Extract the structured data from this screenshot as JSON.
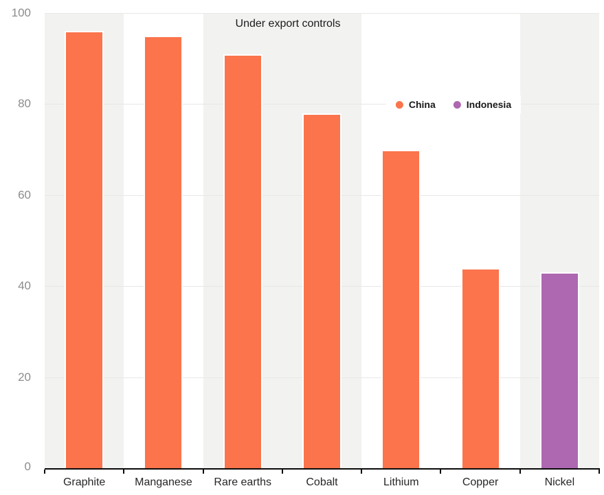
{
  "chart_data": {
    "type": "bar",
    "annotation": "Under export controls",
    "categories": [
      "Graphite",
      "Manganese",
      "Rare earths",
      "Cobalt",
      "Lithium",
      "Copper",
      "Nickel"
    ],
    "bars": [
      {
        "category": "Graphite",
        "series": "China",
        "value": 96,
        "shaded_band": true
      },
      {
        "category": "Manganese",
        "series": "China",
        "value": 95,
        "shaded_band": false
      },
      {
        "category": "Rare earths",
        "series": "China",
        "value": 91,
        "shaded_band": true
      },
      {
        "category": "Cobalt",
        "series": "China",
        "value": 78,
        "shaded_band": true
      },
      {
        "category": "Lithium",
        "series": "China",
        "value": 70,
        "shaded_band": false
      },
      {
        "category": "Copper",
        "series": "China",
        "value": 44,
        "shaded_band": false
      },
      {
        "category": "Nickel",
        "series": "Indonesia",
        "value": 43,
        "shaded_band": true
      }
    ],
    "series": [
      {
        "name": "China",
        "color": "#fb744b"
      },
      {
        "name": "Indonesia",
        "color": "#ad68b1"
      }
    ],
    "y_axis": {
      "ticks": [
        0,
        20,
        40,
        60,
        80,
        100
      ],
      "range": [
        0,
        100
      ]
    },
    "legend": {
      "entries": [
        "China",
        "Indonesia"
      ],
      "position": "center-right"
    },
    "grid": true,
    "colors": {
      "band": "#f2f2f1",
      "gridline": "#e7e7e6",
      "axis": "#0a0a0a",
      "y_label": "#8c8c8c",
      "x_label": "#262626"
    }
  }
}
